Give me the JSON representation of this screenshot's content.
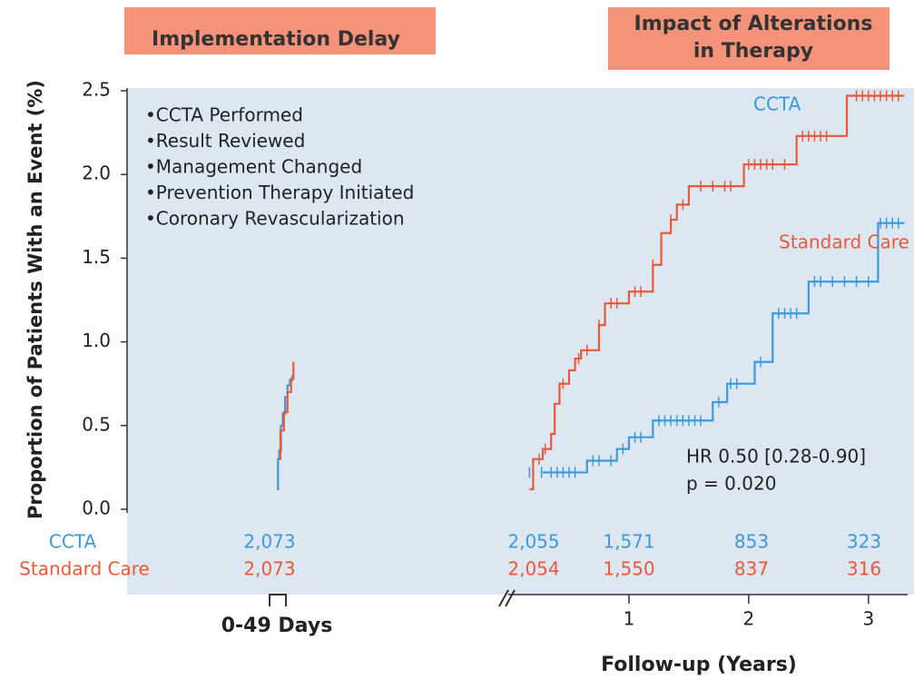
{
  "chart_data": {
    "type": "km",
    "headers": [
      "Implementation Delay",
      "Impact of Alterations in Therapy"
    ],
    "header2_lines": [
      "Impact of Alterations",
      "in Therapy"
    ],
    "ylabel": "Proportion of Patients With an Event (%)",
    "xlabel": "Follow-up (Years)",
    "early_label": "0-49 Days",
    "ylim": [
      0,
      2.5
    ],
    "yticks": [
      {
        "value": 0,
        "label": "0.0"
      },
      0.5,
      {
        "value": 1,
        "label": "1.0"
      },
      1.5,
      {
        "value": 2,
        "label": "2.0"
      },
      2.5
    ],
    "xlim": [
      0,
      3.35
    ],
    "xticks": [
      1,
      2,
      3
    ],
    "early_xlim": [
      0,
      49
    ],
    "annotations": [
      "•CCTA Performed",
      "•Result Reviewed",
      "•Management Changed",
      "•Prevention Therapy Initiated",
      "•Coronary Revascularization"
    ],
    "hr_text": [
      "HR 0.50 [0.28-0.90]",
      "p = 0.020"
    ],
    "series": [
      {
        "name": "CCTA",
        "color": "#3d9ad6",
        "early_x": [
          0,
          2,
          4,
          7,
          10,
          14,
          18,
          22,
          26
        ],
        "early_values": [
          0.12,
          0.3,
          0.35,
          0.5,
          0.57,
          0.67,
          0.74,
          0.77,
          0.8
        ],
        "x": [
          0.28,
          0.65,
          0.9,
          1.0,
          1.2,
          1.7,
          1.82,
          2.05,
          2.2,
          2.5,
          3.08,
          3.3
        ],
        "values": [
          0.22,
          0.29,
          0.36,
          0.43,
          0.53,
          0.64,
          0.75,
          0.88,
          1.17,
          1.36,
          1.71,
          1.71
        ],
        "censor_x": [
          0.17,
          0.27,
          0.35,
          0.4,
          0.45,
          0.5,
          0.55,
          0.7,
          0.75,
          0.85,
          0.95,
          1.05,
          1.1,
          1.25,
          1.3,
          1.35,
          1.4,
          1.45,
          1.5,
          1.55,
          1.6,
          1.75,
          1.85,
          1.9,
          2.1,
          2.25,
          2.3,
          2.35,
          2.4,
          2.55,
          2.6,
          2.7,
          2.8,
          2.9,
          3.0,
          3.1,
          3.15,
          3.2,
          3.25
        ]
      },
      {
        "name": "Standard Care",
        "color": "#e8593a",
        "early_x": [
          4,
          6,
          12,
          18,
          24,
          28
        ],
        "early_values": [
          0.3,
          0.47,
          0.58,
          0.7,
          0.78,
          0.88
        ],
        "x": [
          0.17,
          0.2,
          0.28,
          0.35,
          0.38,
          0.42,
          0.5,
          0.55,
          0.6,
          0.75,
          0.8,
          1.0,
          1.2,
          1.27,
          1.35,
          1.4,
          1.5,
          1.96,
          2.4,
          2.82,
          3.3
        ],
        "values": [
          0.12,
          0.3,
          0.36,
          0.45,
          0.63,
          0.75,
          0.83,
          0.9,
          0.95,
          1.1,
          1.23,
          1.3,
          1.46,
          1.65,
          1.73,
          1.82,
          1.93,
          2.06,
          2.23,
          2.47,
          2.47
        ],
        "censor_x": [
          0.25,
          0.3,
          0.45,
          0.58,
          0.65,
          0.75,
          0.85,
          0.9,
          1.05,
          1.1,
          1.2,
          1.35,
          1.45,
          1.6,
          1.7,
          1.8,
          1.85,
          2.0,
          2.05,
          2.1,
          2.15,
          2.2,
          2.3,
          2.45,
          2.5,
          2.55,
          2.6,
          2.65,
          2.9,
          2.95,
          3.0,
          3.05,
          3.1,
          3.15,
          3.2,
          3.25
        ]
      }
    ],
    "at_risk": [
      {
        "name": "CCTA",
        "values": [
          2073,
          2055,
          1571,
          853,
          323
        ],
        "value_labels": [
          "2,073",
          "2,055",
          "1,571",
          "853",
          "323"
        ]
      },
      {
        "name": "Standard Care",
        "values": [
          2073,
          2054,
          1550,
          837,
          316
        ],
        "value_labels": [
          "2,073",
          "2,054",
          "1,550",
          "837",
          "316"
        ]
      }
    ]
  }
}
